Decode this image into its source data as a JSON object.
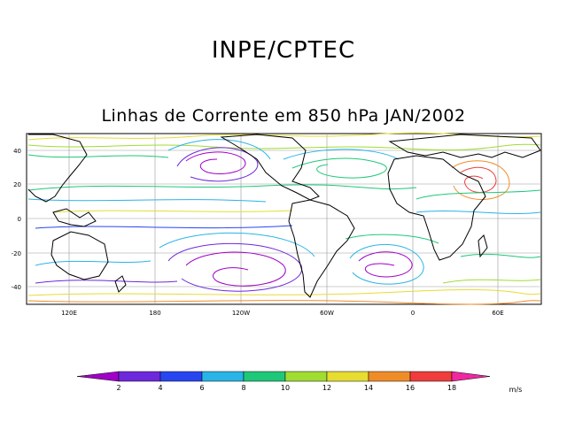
{
  "title": "INPE/CPTEC",
  "subtitle": "Linhas de Corrente em 850 hPa JAN/2002",
  "map": {
    "lat_ticks": [
      "40",
      "20",
      "0",
      "-20",
      "-40"
    ],
    "lon_ticks": [
      "120E",
      "180",
      "120W",
      "60W",
      "0",
      "60E"
    ]
  },
  "colorbar": {
    "unit": "m/s",
    "labels": [
      "2",
      "4",
      "6",
      "8",
      "10",
      "12",
      "14",
      "16",
      "18"
    ],
    "colors": [
      "#a000c8",
      "#6e28dc",
      "#2846f0",
      "#28b4e6",
      "#1ec878",
      "#a0dc32",
      "#e6dc32",
      "#f08c28",
      "#f03c3c",
      "#f028a0"
    ]
  }
}
